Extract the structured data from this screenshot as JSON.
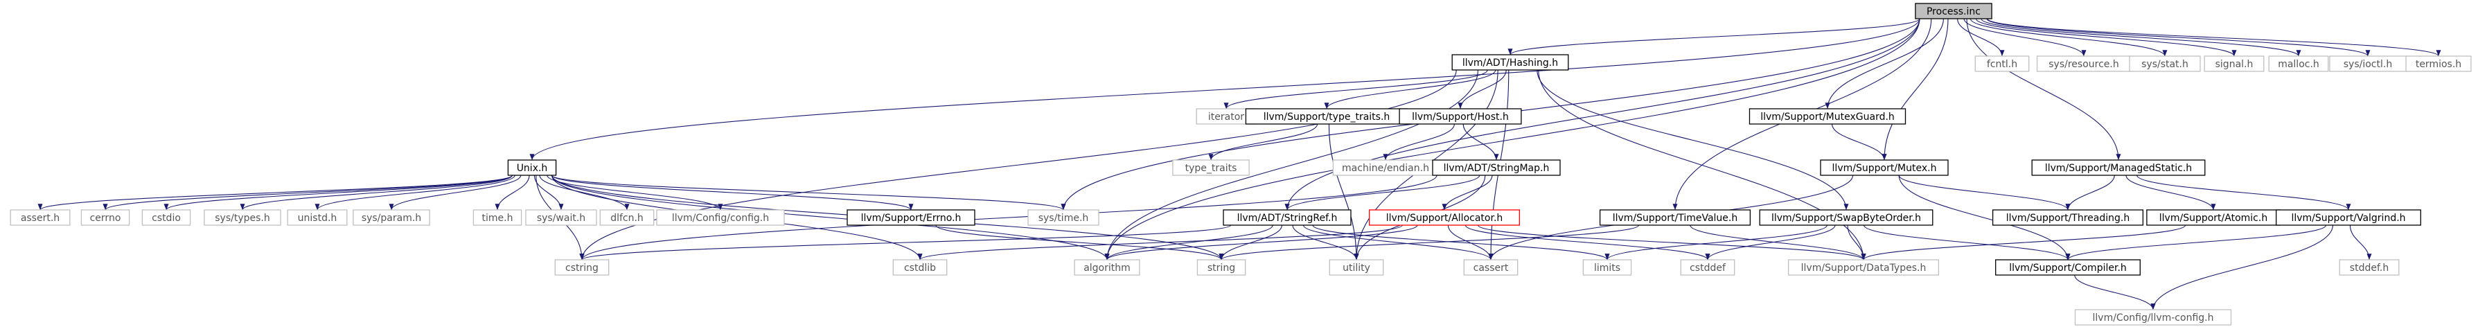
{
  "diagram": {
    "nodes": [
      {
        "id": "process",
        "label": "Process.inc",
        "style": "root"
      },
      {
        "id": "unix",
        "label": "Unix.h",
        "style": "box"
      },
      {
        "id": "hashing",
        "label": "llvm/ADT/Hashing.h",
        "style": "box"
      },
      {
        "id": "systime",
        "label": "sys/time.h",
        "style": "plain"
      },
      {
        "id": "mutexguard",
        "label": "llvm/Support/MutexGuard.h",
        "style": "box"
      },
      {
        "id": "fcntl",
        "label": "fcntl.h",
        "style": "plain"
      },
      {
        "id": "sysresource",
        "label": "sys/resource.h",
        "style": "plain"
      },
      {
        "id": "sysstat",
        "label": "sys/stat.h",
        "style": "plain"
      },
      {
        "id": "signal",
        "label": "signal.h",
        "style": "plain"
      },
      {
        "id": "malloc",
        "label": "malloc.h",
        "style": "plain"
      },
      {
        "id": "sysioctl",
        "label": "sys/ioctl.h",
        "style": "plain"
      },
      {
        "id": "termios",
        "label": "termios.h",
        "style": "plain"
      },
      {
        "id": "iterator",
        "label": "iterator",
        "style": "plain"
      },
      {
        "id": "typetraitsllvm",
        "label": "llvm/Support/type_traits.h",
        "style": "box"
      },
      {
        "id": "host",
        "label": "llvm/Support/Host.h",
        "style": "box"
      },
      {
        "id": "mutex",
        "label": "llvm/Support/Mutex.h",
        "style": "box"
      },
      {
        "id": "managedstatic",
        "label": "llvm/Support/ManagedStatic.h",
        "style": "box"
      },
      {
        "id": "typetraits",
        "label": "type_traits",
        "style": "plain"
      },
      {
        "id": "machineendian",
        "label": "machine/endian.h",
        "style": "plain"
      },
      {
        "id": "stringmap",
        "label": "llvm/ADT/StringMap.h",
        "style": "box"
      },
      {
        "id": "asserth",
        "label": "assert.h",
        "style": "plain"
      },
      {
        "id": "cerrno",
        "label": "cerrno",
        "style": "plain"
      },
      {
        "id": "cstdio",
        "label": "cstdio",
        "style": "plain"
      },
      {
        "id": "systypes",
        "label": "sys/types.h",
        "style": "plain"
      },
      {
        "id": "unistd",
        "label": "unistd.h",
        "style": "plain"
      },
      {
        "id": "sysparam",
        "label": "sys/param.h",
        "style": "plain"
      },
      {
        "id": "timeh",
        "label": "time.h",
        "style": "plain"
      },
      {
        "id": "syswait",
        "label": "sys/wait.h",
        "style": "plain"
      },
      {
        "id": "dlfcn",
        "label": "dlfcn.h",
        "style": "plain"
      },
      {
        "id": "configh",
        "label": "llvm/Config/config.h",
        "style": "plain"
      },
      {
        "id": "errno",
        "label": "llvm/Support/Errno.h",
        "style": "box"
      },
      {
        "id": "stringref",
        "label": "llvm/ADT/StringRef.h",
        "style": "box"
      },
      {
        "id": "allocator",
        "label": "llvm/Support/Allocator.h",
        "style": "red"
      },
      {
        "id": "timevalue",
        "label": "llvm/Support/TimeValue.h",
        "style": "box"
      },
      {
        "id": "swapbyteorder",
        "label": "llvm/Support/SwapByteOrder.h",
        "style": "box"
      },
      {
        "id": "threading",
        "label": "llvm/Support/Threading.h",
        "style": "box"
      },
      {
        "id": "atomic",
        "label": "llvm/Support/Atomic.h",
        "style": "box"
      },
      {
        "id": "valgrind",
        "label": "llvm/Support/Valgrind.h",
        "style": "box"
      },
      {
        "id": "cstring",
        "label": "cstring",
        "style": "plain"
      },
      {
        "id": "cstdlib",
        "label": "cstdlib",
        "style": "plain"
      },
      {
        "id": "algorithm",
        "label": "algorithm",
        "style": "plain"
      },
      {
        "id": "string",
        "label": "string",
        "style": "plain"
      },
      {
        "id": "utility",
        "label": "utility",
        "style": "plain"
      },
      {
        "id": "cassert",
        "label": "cassert",
        "style": "plain"
      },
      {
        "id": "limits",
        "label": "limits",
        "style": "plain"
      },
      {
        "id": "cstddef",
        "label": "cstddef",
        "style": "plain"
      },
      {
        "id": "datatypes",
        "label": "llvm/Support/DataTypes.h",
        "style": "plain"
      },
      {
        "id": "compiler",
        "label": "llvm/Support/Compiler.h",
        "style": "box"
      },
      {
        "id": "stddef",
        "label": "stddef.h",
        "style": "plain"
      },
      {
        "id": "llvmconfig",
        "label": "llvm/Config/llvm-config.h",
        "style": "plain"
      }
    ],
    "edges": [
      [
        "process",
        "unix"
      ],
      [
        "process",
        "hashing"
      ],
      [
        "process",
        "systime"
      ],
      [
        "process",
        "mutexguard"
      ],
      [
        "process",
        "fcntl"
      ],
      [
        "process",
        "sysresource"
      ],
      [
        "process",
        "sysstat"
      ],
      [
        "process",
        "signal"
      ],
      [
        "process",
        "malloc"
      ],
      [
        "process",
        "sysioctl"
      ],
      [
        "process",
        "termios"
      ],
      [
        "process",
        "mutex"
      ],
      [
        "process",
        "managedstatic"
      ],
      [
        "process",
        "timevalue"
      ],
      [
        "process",
        "stringref"
      ],
      [
        "process",
        "algorithm"
      ],
      [
        "unix",
        "asserth"
      ],
      [
        "unix",
        "cerrno"
      ],
      [
        "unix",
        "cstdio"
      ],
      [
        "unix",
        "systypes"
      ],
      [
        "unix",
        "unistd"
      ],
      [
        "unix",
        "sysparam"
      ],
      [
        "unix",
        "timeh"
      ],
      [
        "unix",
        "syswait"
      ],
      [
        "unix",
        "dlfcn"
      ],
      [
        "unix",
        "configh"
      ],
      [
        "unix",
        "errno"
      ],
      [
        "unix",
        "systime"
      ],
      [
        "unix",
        "cstring"
      ],
      [
        "unix",
        "cstdlib"
      ],
      [
        "unix",
        "algorithm"
      ],
      [
        "unix",
        "string"
      ],
      [
        "hashing",
        "iterator"
      ],
      [
        "hashing",
        "typetraitsllvm"
      ],
      [
        "hashing",
        "host"
      ],
      [
        "hashing",
        "cstring"
      ],
      [
        "hashing",
        "algorithm"
      ],
      [
        "hashing",
        "cassert"
      ],
      [
        "hashing",
        "utility"
      ],
      [
        "hashing",
        "datatypes"
      ],
      [
        "hashing",
        "swapbyteorder"
      ],
      [
        "typetraitsllvm",
        "typetraits"
      ],
      [
        "typetraitsllvm",
        "utility"
      ],
      [
        "host",
        "machineendian"
      ],
      [
        "host",
        "stringmap"
      ],
      [
        "stringmap",
        "stringref"
      ],
      [
        "stringmap",
        "allocator"
      ],
      [
        "stringmap",
        "cstring"
      ],
      [
        "stringmap",
        "utility"
      ],
      [
        "errno",
        "string"
      ],
      [
        "stringref",
        "cstring"
      ],
      [
        "stringref",
        "algorithm"
      ],
      [
        "stringref",
        "string"
      ],
      [
        "stringref",
        "utility"
      ],
      [
        "stringref",
        "cassert"
      ],
      [
        "stringref",
        "limits"
      ],
      [
        "allocator",
        "cassert"
      ],
      [
        "allocator",
        "cstddef"
      ],
      [
        "allocator",
        "cstdlib"
      ],
      [
        "allocator",
        "algorithm"
      ],
      [
        "allocator",
        "datatypes"
      ],
      [
        "timevalue",
        "string"
      ],
      [
        "timevalue",
        "datatypes"
      ],
      [
        "swapbyteorder",
        "cstddef"
      ],
      [
        "swapbyteorder",
        "limits"
      ],
      [
        "swapbyteorder",
        "datatypes"
      ],
      [
        "swapbyteorder",
        "compiler"
      ],
      [
        "mutexguard",
        "mutex"
      ],
      [
        "mutex",
        "threading"
      ],
      [
        "mutex",
        "compiler"
      ],
      [
        "mutex",
        "cassert"
      ],
      [
        "managedstatic",
        "threading"
      ],
      [
        "managedstatic",
        "atomic"
      ],
      [
        "managedstatic",
        "valgrind"
      ],
      [
        "atomic",
        "datatypes"
      ],
      [
        "valgrind",
        "compiler"
      ],
      [
        "valgrind",
        "stddef"
      ],
      [
        "valgrind",
        "llvmconfig"
      ],
      [
        "compiler",
        "llvmconfig"
      ]
    ]
  }
}
